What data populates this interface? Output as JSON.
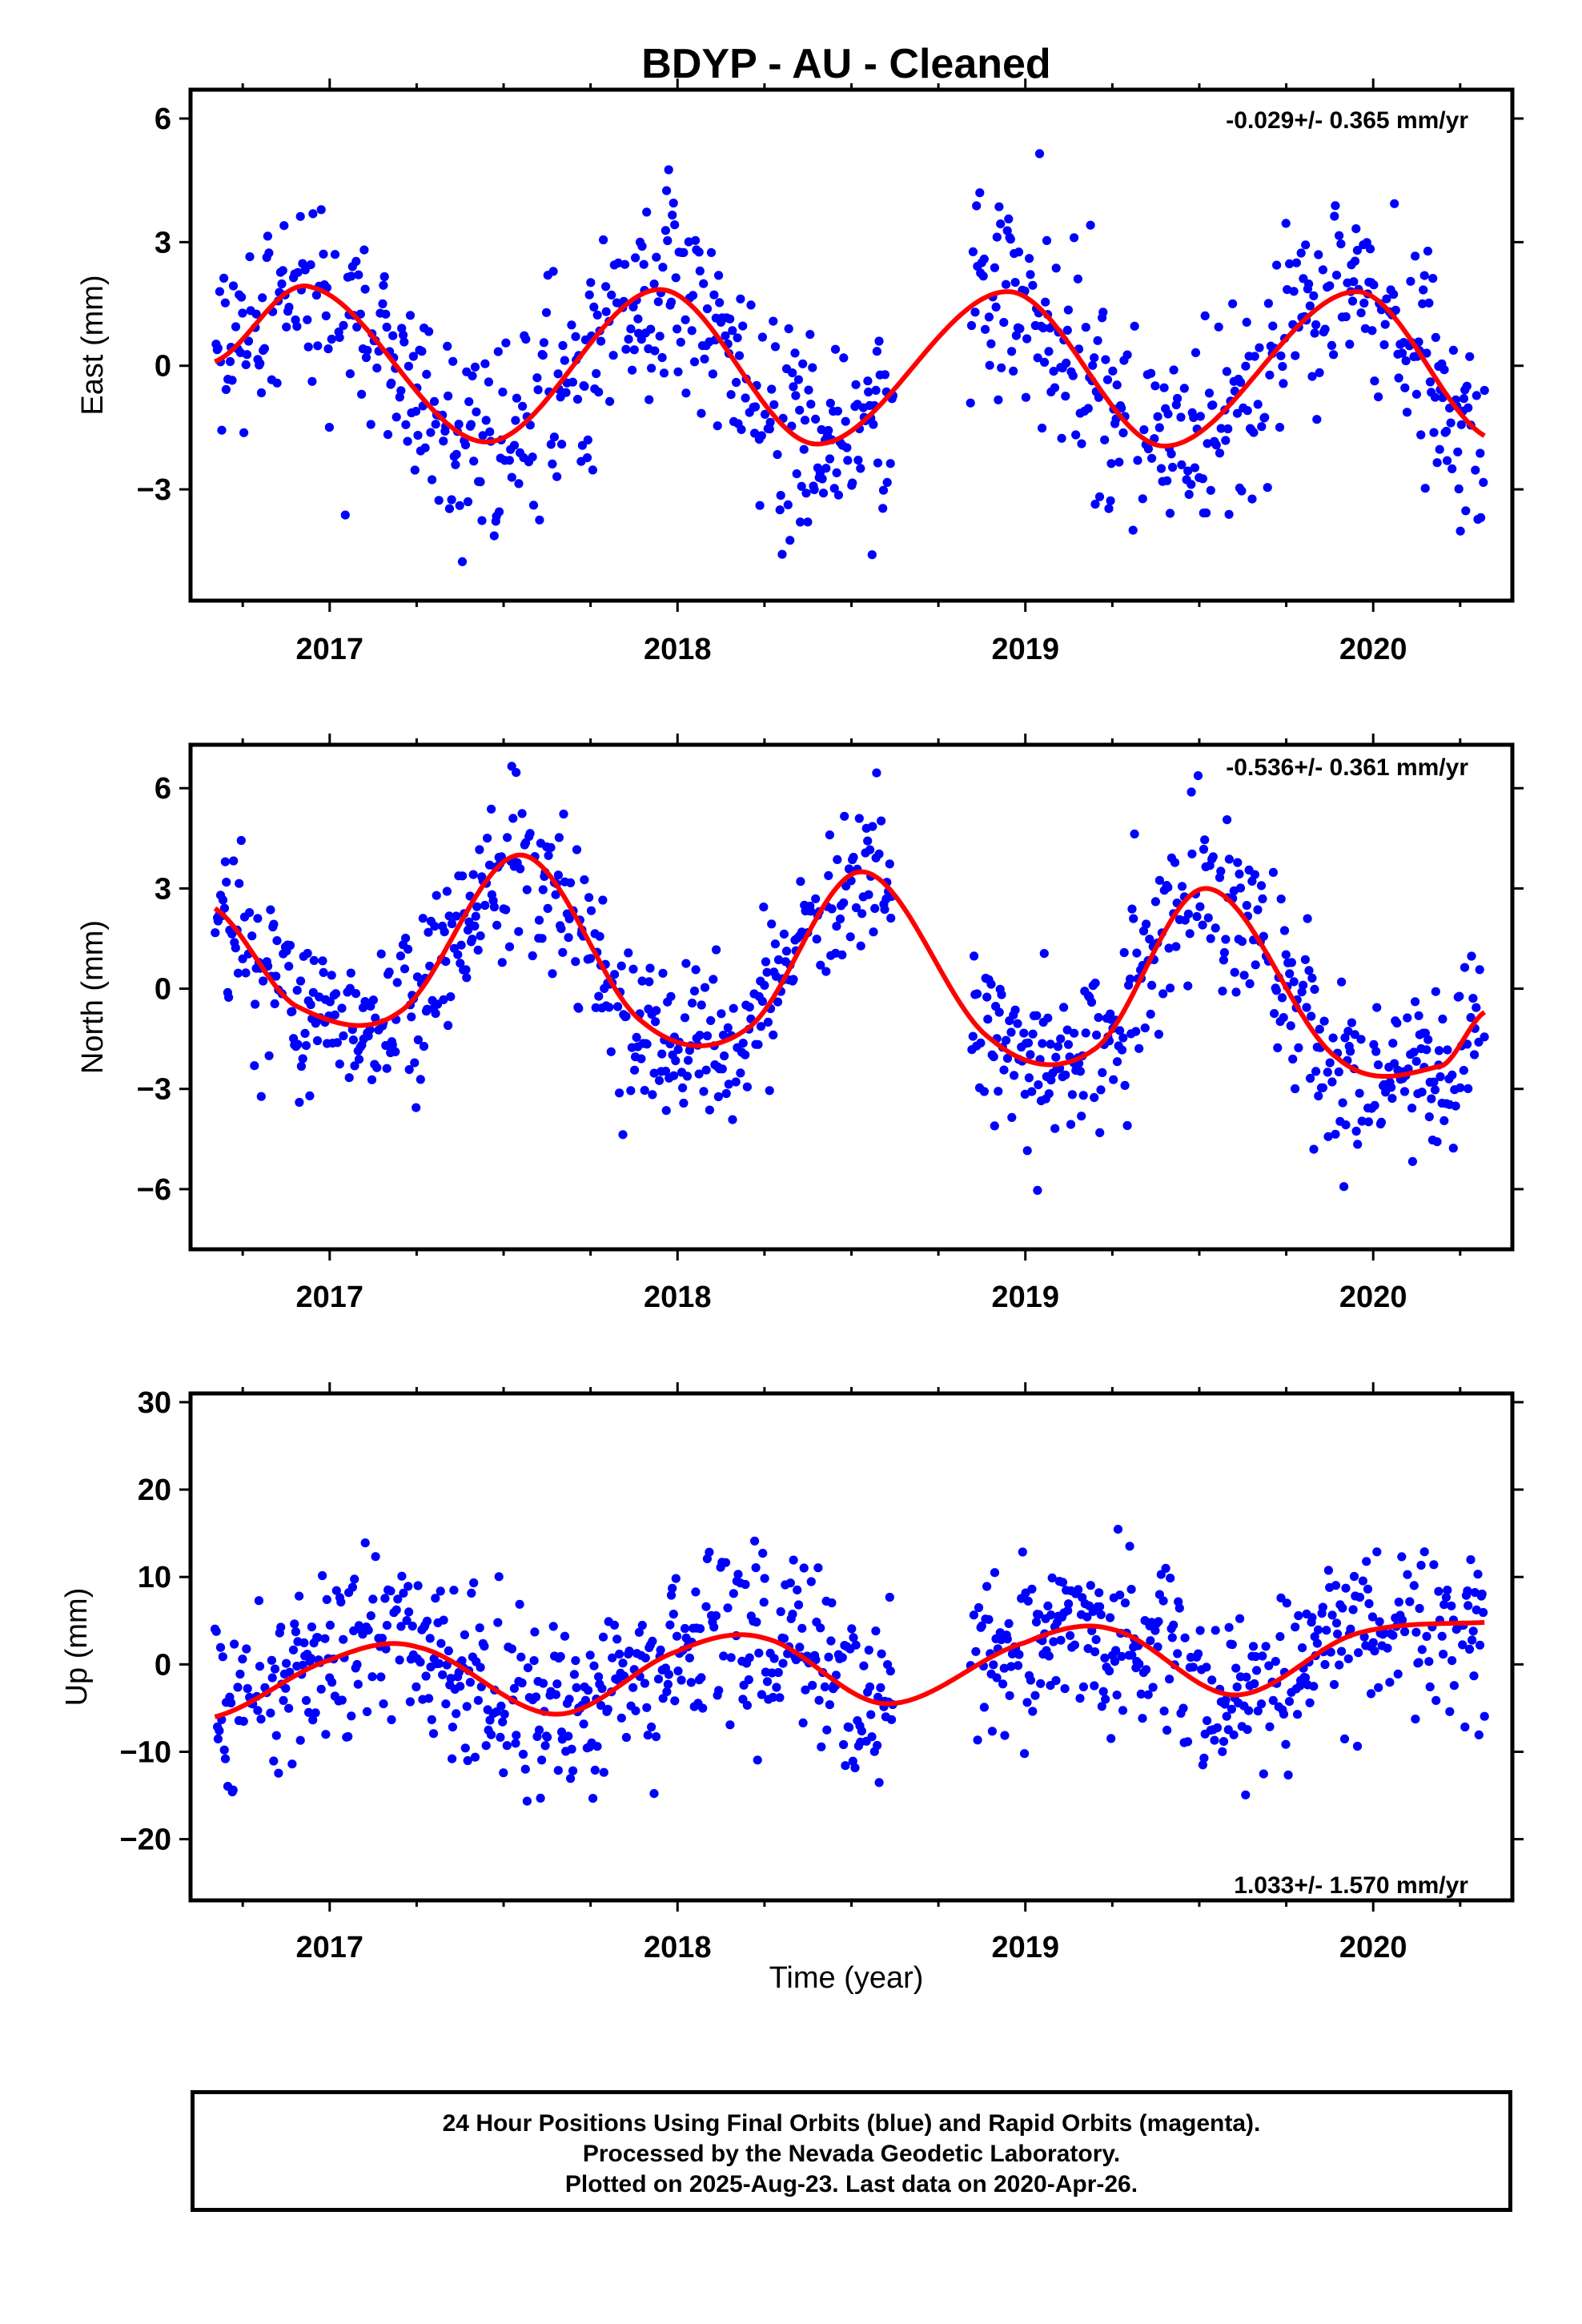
{
  "title": "BDYP  - AU - Cleaned",
  "xlabel": "Time (year)",
  "footer": {
    "line1": "24 Hour Positions Using Final Orbits (blue) and Rapid Orbits (magenta).",
    "line2": "Processed by the Nevada Geodetic Laboratory.",
    "line3": "Plotted on 2025-Aug-23. Last data on 2020-Apr-26."
  },
  "colors": {
    "points": "#0000ff",
    "model": "#ff0000",
    "axes": "#000000"
  },
  "chart_data": [
    {
      "type": "scatter",
      "component": "east",
      "ylabel": "East (mm)",
      "rate_label": "-0.029+/- 0.365 mm/yr",
      "xlim": [
        2016.6,
        2020.4
      ],
      "ylim": [
        -5.7,
        6.7
      ],
      "yticks": [
        -3,
        0,
        3,
        6
      ],
      "xticks": [
        2017,
        2018,
        2019,
        2020
      ],
      "data_range": [
        2016.67,
        2020.32
      ],
      "gap": [
        2018.62,
        2018.84
      ],
      "model_sin": [
        0.0,
        1.85
      ],
      "model_cos": [
        -0.1,
        0.05
      ],
      "model_points": [
        [
          2016.67,
          0.1
        ],
        [
          2016.95,
          1.9
        ],
        [
          2017.45,
          -1.85
        ],
        [
          2017.95,
          1.85
        ],
        [
          2018.4,
          -1.9
        ],
        [
          2018.95,
          1.8
        ],
        [
          2019.4,
          -1.95
        ],
        [
          2019.95,
          1.8
        ],
        [
          2020.32,
          -1.7
        ]
      ],
      "scatter_sigma": 1.25,
      "n_points": 1100
    },
    {
      "type": "scatter",
      "component": "north",
      "ylabel": "North (mm)",
      "rate_label": "-0.536+/- 0.361 mm/yr",
      "xlim": [
        2016.6,
        2020.4
      ],
      "ylim": [
        -7.8,
        7.3
      ],
      "yticks": [
        -6,
        -3,
        0,
        3,
        6
      ],
      "xticks": [
        2017,
        2018,
        2019,
        2020
      ],
      "data_range": [
        2016.67,
        2020.32
      ],
      "gap": [
        2018.62,
        2018.84
      ],
      "model_points": [
        [
          2016.67,
          2.4
        ],
        [
          2016.9,
          -0.5
        ],
        [
          2017.2,
          -0.7
        ],
        [
          2017.55,
          4.0
        ],
        [
          2017.9,
          -1.0
        ],
        [
          2018.2,
          -1.2
        ],
        [
          2018.53,
          3.5
        ],
        [
          2018.9,
          -1.5
        ],
        [
          2019.2,
          -1.8
        ],
        [
          2019.52,
          3.0
        ],
        [
          2019.9,
          -2.1
        ],
        [
          2020.2,
          -2.3
        ],
        [
          2020.32,
          -0.7
        ]
      ],
      "scatter_sigma": 1.25,
      "n_points": 1100
    },
    {
      "type": "scatter",
      "component": "up",
      "ylabel": "Up (mm)",
      "rate_label": "1.033+/- 1.570 mm/yr",
      "xlim": [
        2016.6,
        2020.4
      ],
      "ylim": [
        -27,
        31
      ],
      "yticks": [
        -20,
        -10,
        0,
        10,
        20,
        30
      ],
      "xticks": [
        2017,
        2018,
        2019,
        2020
      ],
      "data_range": [
        2016.67,
        2020.32
      ],
      "gap": [
        2018.62,
        2018.84
      ],
      "model_points": [
        [
          2016.67,
          -6.0
        ],
        [
          2017.0,
          0.5
        ],
        [
          2017.25,
          2.0
        ],
        [
          2017.65,
          -5.7
        ],
        [
          2018.0,
          1.5
        ],
        [
          2018.25,
          3.0
        ],
        [
          2018.6,
          -4.5
        ],
        [
          2019.0,
          2.5
        ],
        [
          2019.25,
          4.0
        ],
        [
          2019.6,
          -3.5
        ],
        [
          2019.95,
          3.5
        ],
        [
          2020.32,
          4.8
        ]
      ],
      "scatter_sigma": 5.0,
      "n_points": 1100
    }
  ]
}
